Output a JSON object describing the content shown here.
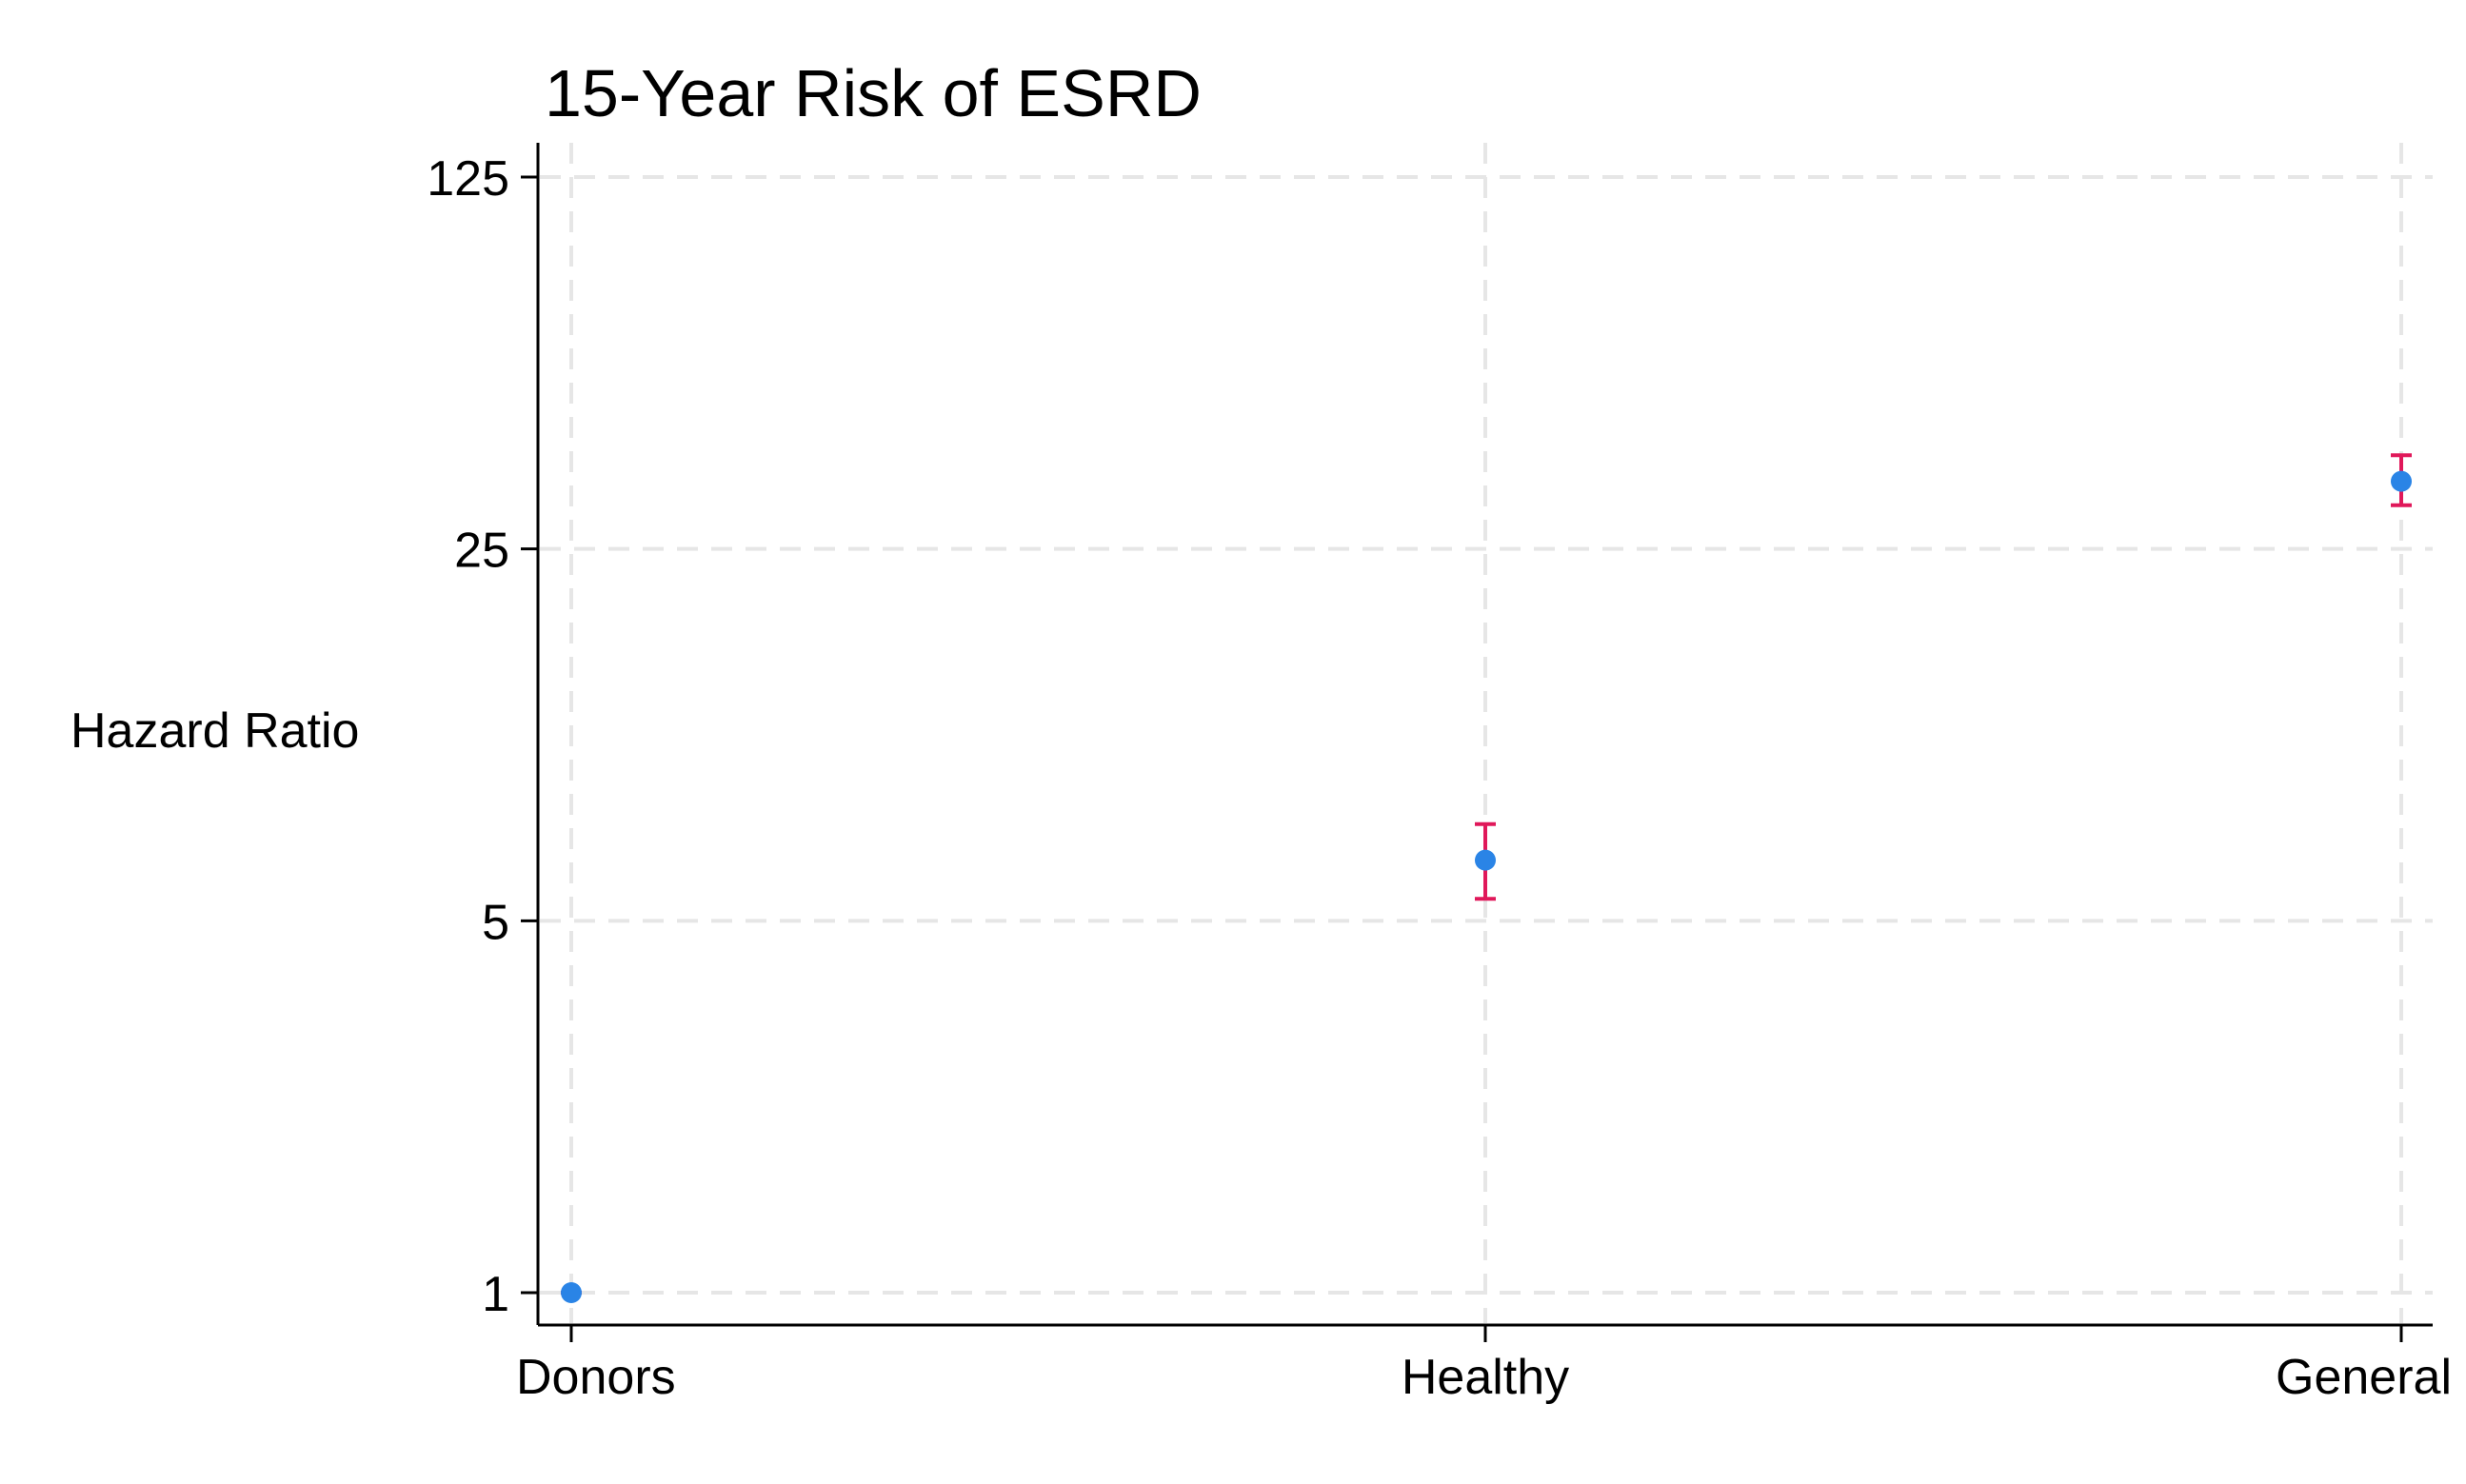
{
  "chart_data": {
    "type": "scatter",
    "title": "15-Year Risk of ESRD",
    "xlabel": "",
    "ylabel": "Hazard Ratio",
    "yscale": "log",
    "ylim": [
      0.9,
      150
    ],
    "yticks": [
      1,
      5,
      25,
      125
    ],
    "ytick_labels": [
      "1",
      "5",
      "25",
      "125"
    ],
    "categories": [
      "Donors",
      "Healthy",
      "General"
    ],
    "points": [
      {
        "category": "Donors",
        "value": 1.0,
        "ci_low": 1.0,
        "ci_high": 1.0
      },
      {
        "category": "Healthy",
        "value": 6.5,
        "ci_low": 5.5,
        "ci_high": 7.6
      },
      {
        "category": "General",
        "value": 33.5,
        "ci_low": 30.2,
        "ci_high": 37.5
      }
    ],
    "grid": true,
    "grid_style": "dashed",
    "legend": "none",
    "marker_color": "#2a84e6",
    "errorbar_color": "#e0185a",
    "grid_color": "#e6e6e6",
    "axis_color": "#000000"
  }
}
